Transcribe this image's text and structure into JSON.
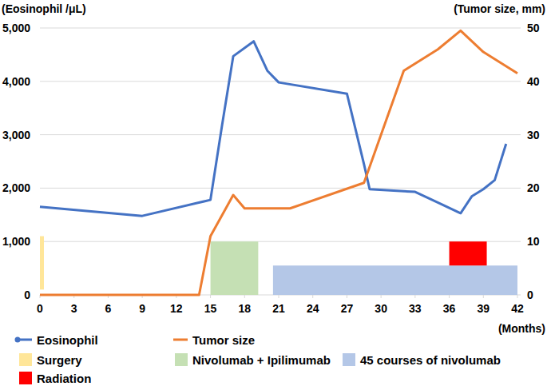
{
  "chart_data": {
    "type": "line",
    "y_label": "(Eosinophil /μL)",
    "y2_label": "(Tumor size, mm)",
    "x_label": "(Months)",
    "xlim": [
      0,
      42
    ],
    "xticks": [
      0,
      3,
      6,
      9,
      12,
      15,
      18,
      21,
      24,
      27,
      30,
      33,
      36,
      39,
      42
    ],
    "ylim": [
      0,
      5000
    ],
    "yticks": [
      0,
      {
        "value": 1000,
        "label": "1,000"
      },
      {
        "value": 2000,
        "label": "2,000"
      },
      {
        "value": 3000,
        "label": "3,000"
      },
      {
        "value": 4000,
        "label": "4,000"
      },
      {
        "value": 5000,
        "label": "5,000"
      }
    ],
    "y2lim": [
      0,
      50
    ],
    "y2ticks": [
      0,
      10,
      20,
      30,
      40,
      50
    ],
    "grid": true,
    "legend": "bottom",
    "series": [
      {
        "name": "Eosinophil",
        "color": "#4472c4",
        "marker": "circle",
        "x": [
          0,
          9,
          15,
          16,
          17,
          18.8,
          20,
          21,
          27,
          28.5,
          29,
          33,
          37,
          38,
          39,
          40,
          41
        ],
        "values": [
          1650,
          1480,
          1780,
          3150,
          4470,
          4750,
          4200,
          3980,
          3770,
          2450,
          1980,
          1930,
          1530,
          1850,
          1980,
          2150,
          2830
        ]
      },
      {
        "name": "Tumor size",
        "color": "#ed7d31",
        "axis": "y2",
        "x": [
          0,
          14,
          15,
          17,
          18,
          22,
          28.5,
          32,
          35,
          37,
          39,
          42
        ],
        "values": [
          0,
          0,
          11,
          18.7,
          16.2,
          16.2,
          21,
          42,
          46,
          49.5,
          45.5,
          41.5
        ]
      }
    ],
    "spans": [
      {
        "name": "Surgery",
        "color": "#ffe699",
        "x": [
          0,
          0.35
        ],
        "y": [
          100,
          1100
        ]
      },
      {
        "name": "Nivolumab + Ipilimumab",
        "color": "#c5e0b4",
        "x": [
          15,
          19.2
        ],
        "y": [
          0,
          1000
        ]
      },
      {
        "name": "45 courses of nivolumab",
        "color": "#b4c7e7",
        "x": [
          20.5,
          42
        ],
        "y": [
          0,
          550
        ]
      },
      {
        "name": "Radiation",
        "color": "#ff0000",
        "x": [
          36,
          39.3
        ],
        "y": [
          550,
          1000
        ]
      }
    ]
  }
}
